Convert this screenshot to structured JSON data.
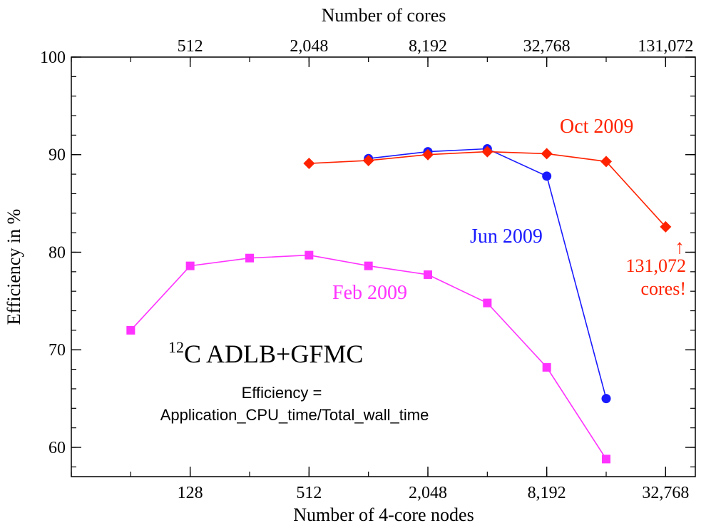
{
  "chart_data": {
    "type": "line",
    "xlabel": "Number of 4-core nodes",
    "x2label": "Number of cores",
    "ylabel": "Efficiency in %",
    "xscale": "log2",
    "xlim": [
      32,
      46341
    ],
    "ylim": [
      57,
      100
    ],
    "x_ticks": [
      128,
      512,
      2048,
      8192,
      32768
    ],
    "x_tick_labels": [
      "128",
      "512",
      "2,048",
      "8,192",
      "32,768"
    ],
    "x2_ticks": [
      512,
      2048,
      8192,
      32768,
      131072
    ],
    "x2_tick_labels": [
      "512",
      "2,048",
      "8,192",
      "32,768",
      "131,072"
    ],
    "y_ticks": [
      60,
      70,
      80,
      90,
      100
    ],
    "y_tick_labels": [
      "60",
      "70",
      "80",
      "90",
      "100"
    ],
    "series": [
      {
        "name": "Feb 2009",
        "color": "#ff33ff",
        "marker": "square",
        "x": [
          64,
          128,
          256,
          512,
          1024,
          2048,
          4096,
          8192,
          16384
        ],
        "y": [
          72.0,
          78.6,
          79.4,
          79.7,
          78.6,
          77.7,
          74.8,
          68.2,
          58.8
        ]
      },
      {
        "name": "Jun 2009",
        "color": "#1a1aff",
        "marker": "circle",
        "x": [
          1024,
          2048,
          4096,
          8192,
          16384
        ],
        "y": [
          89.6,
          90.3,
          90.6,
          87.8,
          65.0
        ]
      },
      {
        "name": "Oct 2009",
        "color": "#ff2200",
        "marker": "diamond",
        "x": [
          512,
          1024,
          2048,
          4096,
          8192,
          16384,
          32768
        ],
        "y": [
          89.1,
          89.4,
          90.0,
          90.3,
          90.1,
          89.3,
          82.6
        ]
      }
    ],
    "annotations": {
      "title_prefix": "12",
      "title_main": "C ADLB+GFMC",
      "formula_line1": "Efficiency =",
      "formula_line2": "Application_CPU_time/Total_wall_time",
      "note_line1": "131,072",
      "note_line2": "cores!",
      "arrow": "↑"
    },
    "grid": false
  }
}
